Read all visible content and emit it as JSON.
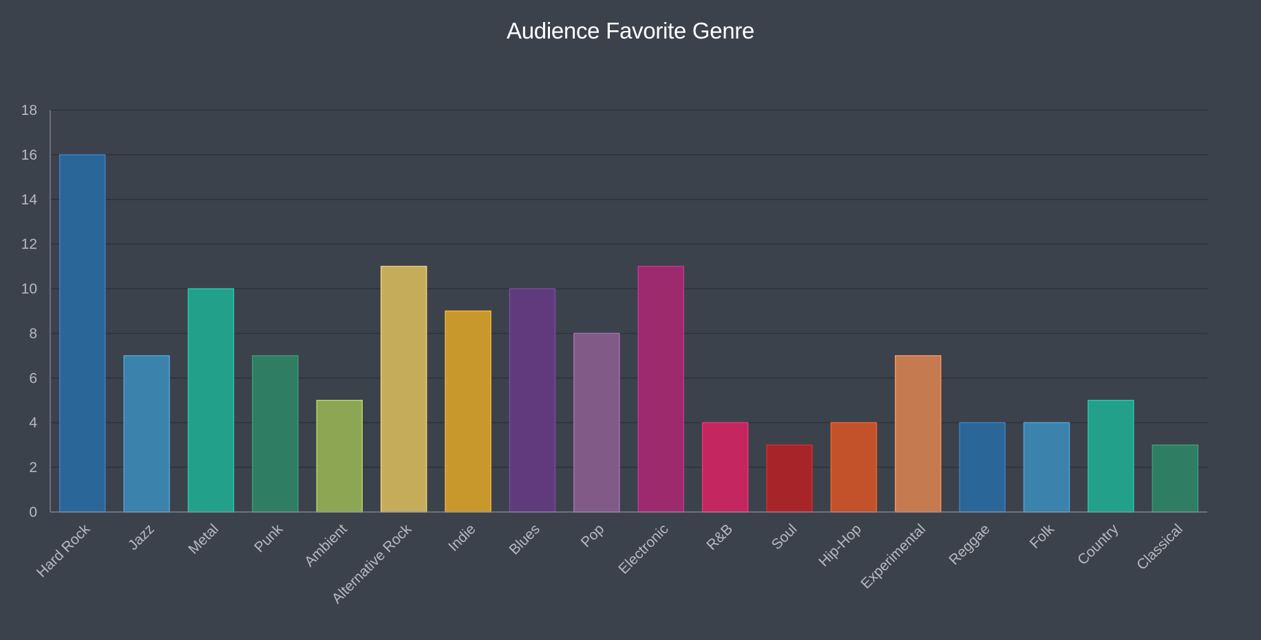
{
  "chart_data": {
    "type": "bar",
    "title": "Audience Favorite Genre",
    "xlabel": "",
    "ylabel": "",
    "ylim": [
      0,
      18
    ],
    "yticks": [
      "0",
      "2",
      "4",
      "6",
      "8",
      "10",
      "12",
      "14",
      "16",
      "18"
    ],
    "grid": true,
    "legend": "none",
    "categories": [
      "Hard Rock",
      "Jazz",
      "Metal",
      "Punk",
      "Ambient",
      "Alternative Rock",
      "Indie",
      "Blues",
      "Pop",
      "Electronic",
      "R&B",
      "Soul",
      "Hip-Hop",
      "Experimental",
      "Reggae",
      "Folk",
      "Country",
      "Classical"
    ],
    "values": [
      16,
      7,
      10,
      7,
      5,
      11,
      9,
      10,
      8,
      11,
      4,
      3,
      4,
      7,
      4,
      4,
      5,
      3
    ],
    "colors": [
      "#2b6698",
      "#3b82ad",
      "#22a08a",
      "#2f7d62",
      "#8da653",
      "#c5ac5b",
      "#c9982d",
      "#5f3b7d",
      "#815a88",
      "#9c2a6d",
      "#c4265f",
      "#a72529",
      "#c3512a",
      "#c67a4f",
      "#2b6698",
      "#3b82ad",
      "#22a08a",
      "#2f7d62"
    ],
    "border_colors": [
      "#3a82c4",
      "#4fa3d6",
      "#2ec4a8",
      "#3b9c7a",
      "#b5d46a",
      "#efd27a",
      "#f3ba3b",
      "#7a4ca0",
      "#a273ad",
      "#c23a8d",
      "#eb3578",
      "#c93035",
      "#ee6432",
      "#f0955f",
      "#3a82c4",
      "#4fa3d6",
      "#2ec4a8",
      "#3b9c7a"
    ]
  }
}
